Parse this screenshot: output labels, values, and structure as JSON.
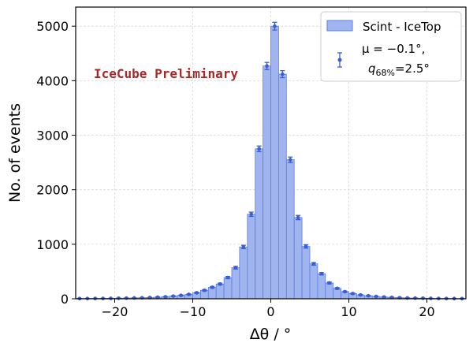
{
  "chart_data": {
    "type": "bar",
    "xlabel": "Δθ / °",
    "ylabel": "No. of events",
    "xlim": [
      -25,
      25
    ],
    "ylim": [
      0,
      5350
    ],
    "xticks": [
      -20,
      -10,
      0,
      10,
      20
    ],
    "xtick_labels": [
      "−20",
      "−10",
      "0",
      "10",
      "20"
    ],
    "yticks": [
      0,
      1000,
      2000,
      3000,
      4000,
      5000
    ],
    "ytick_labels": [
      "0",
      "1000",
      "2000",
      "3000",
      "4000",
      "5000"
    ],
    "grid": true,
    "bin_width": 1,
    "bin_centers": [
      -24.5,
      -23.5,
      -22.5,
      -21.5,
      -20.5,
      -19.5,
      -18.5,
      -17.5,
      -16.5,
      -15.5,
      -14.5,
      -13.5,
      -12.5,
      -11.5,
      -10.5,
      -9.5,
      -8.5,
      -7.5,
      -6.5,
      -5.5,
      -4.5,
      -3.5,
      -2.5,
      -1.5,
      -0.5,
      0.5,
      1.5,
      2.5,
      3.5,
      4.5,
      5.5,
      6.5,
      7.5,
      8.5,
      9.5,
      10.5,
      11.5,
      12.5,
      13.5,
      14.5,
      15.5,
      16.5,
      17.5,
      18.5,
      19.5,
      20.5,
      21.5,
      22.5,
      23.5,
      24.5
    ],
    "values": [
      4,
      5,
      6,
      7,
      8,
      10,
      12,
      15,
      18,
      22,
      28,
      36,
      48,
      62,
      80,
      110,
      155,
      210,
      270,
      390,
      570,
      950,
      1550,
      2750,
      4270,
      5000,
      4120,
      2550,
      1490,
      960,
      640,
      460,
      290,
      190,
      130,
      95,
      70,
      55,
      42,
      32,
      25,
      20,
      15,
      12,
      10,
      8,
      6,
      5,
      4,
      3
    ],
    "errors": [
      2,
      2,
      2,
      3,
      3,
      3,
      3,
      4,
      4,
      5,
      5,
      6,
      7,
      8,
      9,
      10,
      12,
      15,
      16,
      20,
      24,
      31,
      39,
      52,
      65,
      71,
      64,
      50,
      39,
      31,
      25,
      21,
      17,
      14,
      11,
      10,
      8,
      7,
      6,
      6,
      5,
      4,
      4,
      3,
      3,
      3,
      2,
      2,
      2,
      2
    ],
    "title": "",
    "annotation": "IceCube Preliminary",
    "legend_location": "top-right",
    "legend": {
      "hist_label": "Scint - IceTop",
      "points_line1": "μ = −0.1°,",
      "points_line2_sym": "q",
      "points_line2_sub": "68%",
      "points_line2_rest": "=2.5°"
    },
    "colors": {
      "bar_fill": "#a0b4f0",
      "bar_edge": "#5a7ee0",
      "points": "#3a5fcd",
      "annotation": "#a62828",
      "grid": "#d9d9d9"
    }
  }
}
